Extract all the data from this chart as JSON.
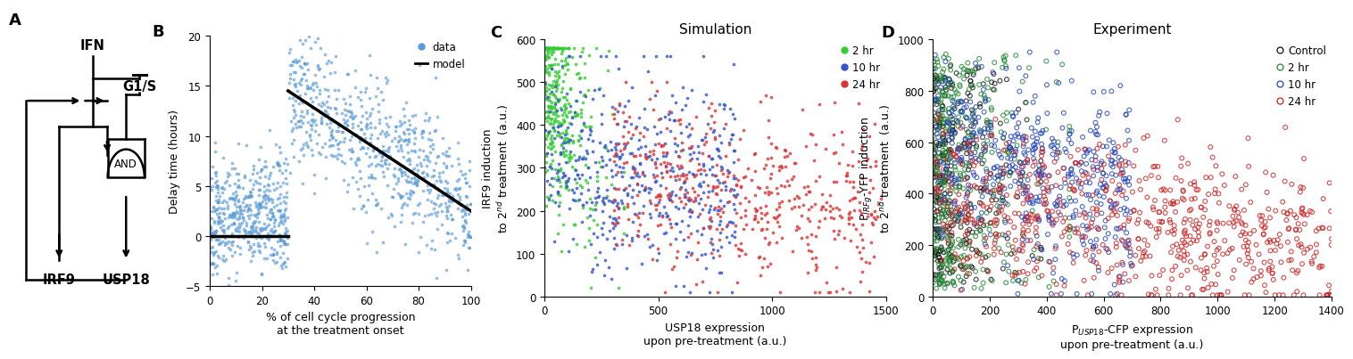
{
  "panel_B": {
    "xlabel": "% of cell cycle progression\nat the treatment onset",
    "ylabel": "Delay time (hours)",
    "xlim": [
      0,
      100
    ],
    "ylim": [
      -5,
      20
    ],
    "xticks": [
      0,
      20,
      40,
      60,
      80,
      100
    ],
    "yticks": [
      -5,
      0,
      5,
      10,
      15,
      20
    ],
    "scatter_color": "#5B9BD5",
    "model_color": "#000000",
    "model_seg1": [
      0,
      30,
      0,
      0
    ],
    "model_seg2": [
      30,
      100,
      14.5,
      2.5
    ],
    "seed_B": 42
  },
  "panel_C": {
    "plot_title": "Simulation",
    "xlabel": "USP18 expression\nupon pre-treatment (a.u.)",
    "ylabel": "IRF9 induction\nto 2nd treatment  (a.u.)",
    "xlim": [
      0,
      1500
    ],
    "ylim": [
      0,
      600
    ],
    "xticks": [
      0,
      500,
      1000,
      1500
    ],
    "yticks": [
      0,
      100,
      200,
      300,
      400,
      500,
      600
    ],
    "groups": [
      {
        "label": "2 hr",
        "color": "#33CC33",
        "seed": 101
      },
      {
        "label": "10 hr",
        "color": "#3355CC",
        "seed": 102
      },
      {
        "label": "24 hr",
        "color": "#DD3333",
        "seed": 103
      }
    ]
  },
  "panel_D": {
    "plot_title": "Experiment",
    "xlabel": "P_USP18-CFP expression\nupon pre-treatment (a.u.)",
    "ylabel": "P_IRFg-YFP induction\nto 2nd treatment  (a.u.)",
    "xlim": [
      0,
      1400
    ],
    "ylim": [
      0,
      1000
    ],
    "xticks": [
      0,
      200,
      400,
      600,
      800,
      1000,
      1200,
      1400
    ],
    "yticks": [
      0,
      200,
      400,
      600,
      800,
      1000
    ],
    "groups": [
      {
        "label": "Control",
        "color": "#111111",
        "seed": 201
      },
      {
        "label": "2 hr",
        "color": "#228833",
        "seed": 202
      },
      {
        "label": "10 hr",
        "color": "#2244BB",
        "seed": 203
      },
      {
        "label": "24 hr",
        "color": "#CC2222",
        "seed": 204
      }
    ]
  },
  "bg_color": "#FFFFFF",
  "font_size": 9,
  "label_font_size": 13
}
